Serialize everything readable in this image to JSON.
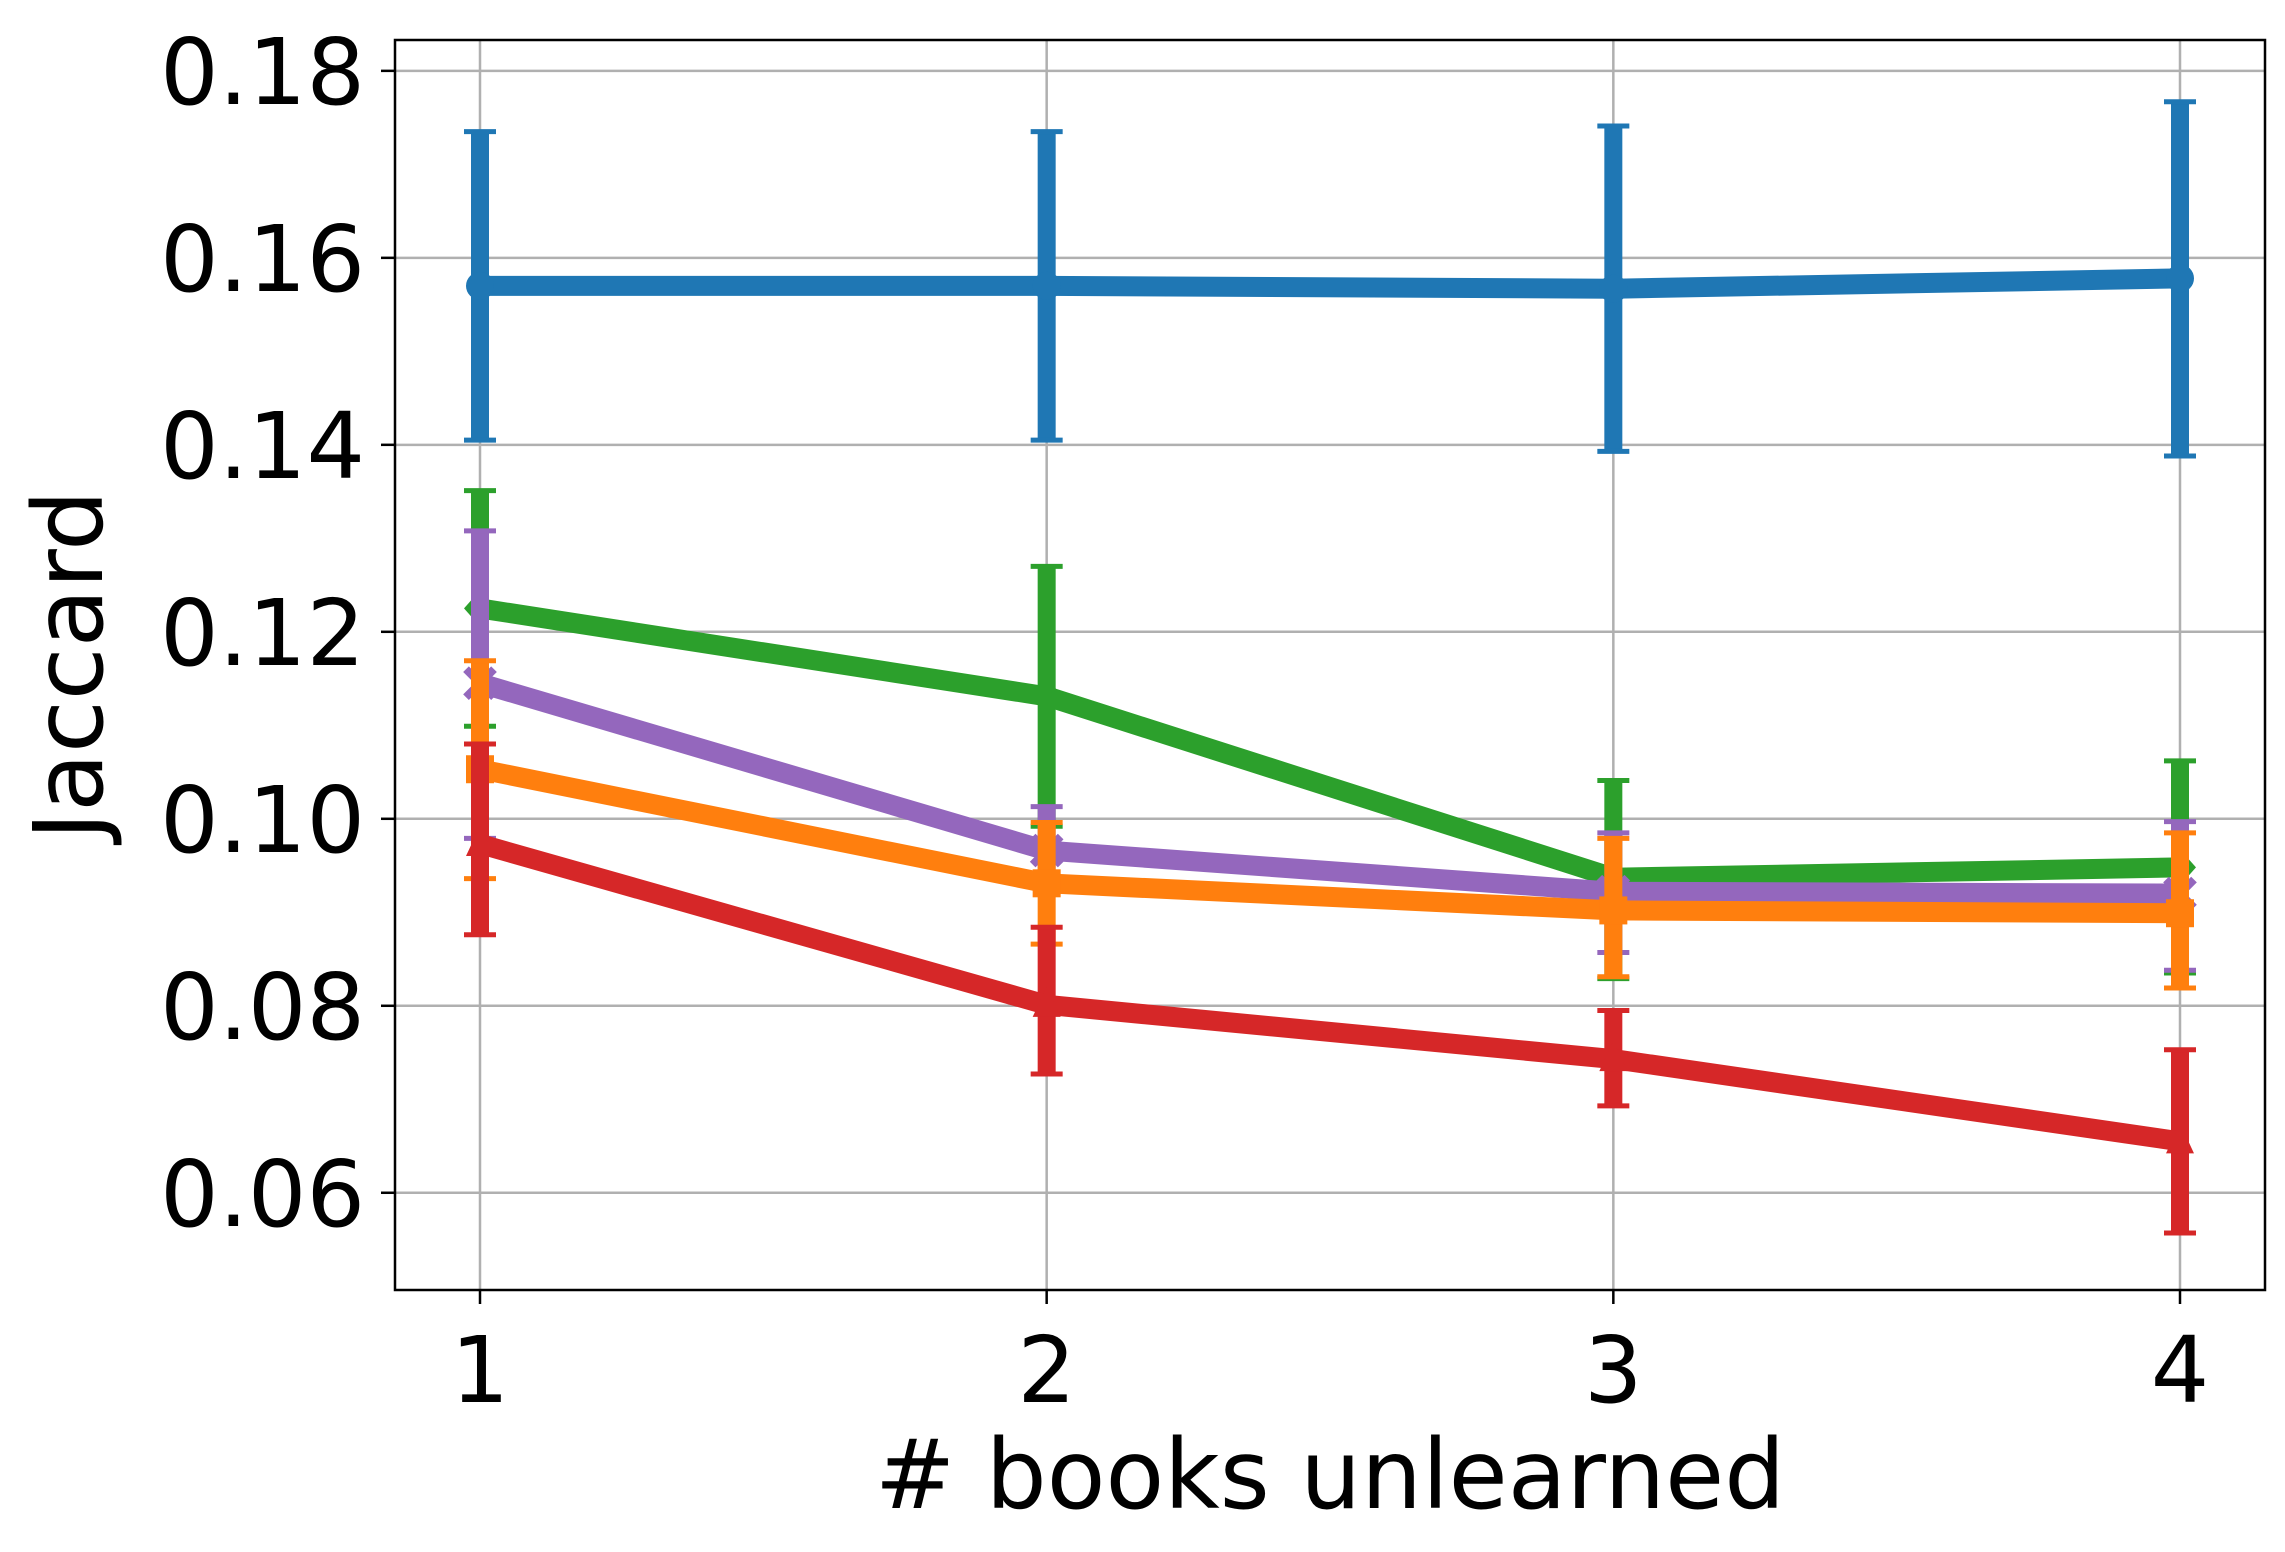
{
  "chart_data": {
    "type": "line",
    "title": "",
    "xlabel": "# books unlearned",
    "ylabel": "Jaccard",
    "x": [
      1,
      2,
      3,
      4
    ],
    "xticks": [
      "1",
      "2",
      "3",
      "4"
    ],
    "yticks": [
      "0.06",
      "0.08",
      "0.10",
      "0.12",
      "0.14",
      "0.16",
      "0.18"
    ],
    "ylim": [
      0.0496,
      0.1833
    ],
    "xlim": [
      0.85,
      4.15
    ],
    "grid": true,
    "series": [
      {
        "color": "#1f77b4",
        "marker": "circle",
        "values": [
          0.157,
          0.157,
          0.1567,
          0.1578
        ],
        "err_low": [
          0.1405,
          0.1405,
          0.1393,
          0.1388
        ],
        "err_high": [
          0.1735,
          0.1735,
          0.1741,
          0.1767
        ]
      },
      {
        "color": "#2ca02c",
        "marker": "diamond",
        "values": [
          0.1225,
          0.1131,
          0.0937,
          0.0948
        ],
        "err_low": [
          0.1099,
          0.0992,
          0.0829,
          0.0835
        ],
        "err_high": [
          0.1351,
          0.127,
          0.1041,
          0.1062
        ]
      },
      {
        "color": "#9467bd",
        "marker": "x",
        "values": [
          0.1145,
          0.0966,
          0.0922,
          0.092
        ],
        "err_low": [
          0.0979,
          0.0928,
          0.0857,
          0.0838
        ],
        "err_high": [
          0.1308,
          0.1013,
          0.0985,
          0.0997
        ]
      },
      {
        "color": "#ff7f0e",
        "marker": "square",
        "values": [
          0.1053,
          0.0931,
          0.0902,
          0.0899
        ],
        "err_low": [
          0.0936,
          0.0866,
          0.0831,
          0.0819
        ],
        "err_high": [
          0.1169,
          0.0996,
          0.0979,
          0.0985
        ]
      },
      {
        "color": "#d62728",
        "marker": "triangle",
        "values": [
          0.0973,
          0.0801,
          0.0743,
          0.0655
        ],
        "err_low": [
          0.0876,
          0.0727,
          0.0693,
          0.0557
        ],
        "err_high": [
          0.108,
          0.0884,
          0.0795,
          0.0753
        ]
      }
    ]
  }
}
